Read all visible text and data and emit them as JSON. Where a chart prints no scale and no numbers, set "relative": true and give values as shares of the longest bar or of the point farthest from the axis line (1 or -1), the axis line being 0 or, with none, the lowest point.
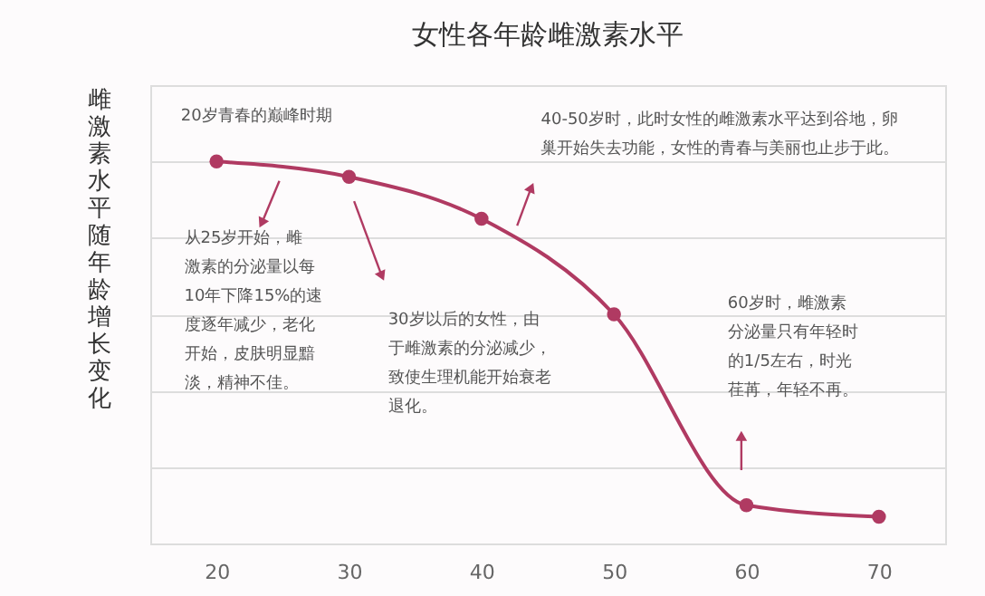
{
  "chart_data": {
    "type": "line",
    "title": "女性各年龄雌激素水平",
    "ylabel": "雌激素水平随年龄增长变化",
    "relative": true,
    "x": [
      20,
      30,
      40,
      50,
      60,
      70
    ],
    "series": [
      {
        "color": "#b03a62",
        "values": [
          1,
          0.96,
          0.85,
          0.6,
          0.1,
          0.07
        ]
      }
    ],
    "xlim": [
      15,
      75
    ],
    "xticks": [
      20,
      30,
      40,
      50,
      60,
      70
    ],
    "grid": "y",
    "marker": "circle",
    "line_style": "solid",
    "annotations": [
      "20岁青春的巅峰时期",
      "从25岁开始，雌激素的分泌量以每10年下降15%的速度逐年减少，老化开始，皮肤明显黯淡，精神不佳。",
      "30岁以后的女性，由于雌激素的分泌减少，致使生理机能开始衰老退化。",
      "40-50岁时，此时女性的雌激素水平达到谷地，卵巢开始失去功能，女性的青春与美丽也止步于此。",
      "60岁时，雌激素分泌量只有年轻时的1/5左右，时光荏苒，年轻不再。"
    ]
  }
}
